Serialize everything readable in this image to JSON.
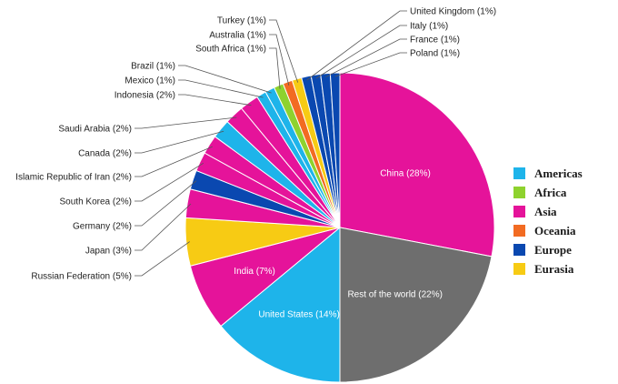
{
  "chart_data": {
    "type": "pie",
    "slices": [
      {
        "label": "China (28%)",
        "value": 28,
        "region": "Asia"
      },
      {
        "label": "Rest of the world (22%)",
        "value": 22,
        "region": "Other"
      },
      {
        "label": "United States (14%)",
        "value": 14,
        "region": "Americas"
      },
      {
        "label": "India (7%)",
        "value": 7,
        "region": "Asia"
      },
      {
        "label": "Russian Federation (5%)",
        "value": 5,
        "region": "Eurasia"
      },
      {
        "label": "Japan (3%)",
        "value": 3,
        "region": "Asia"
      },
      {
        "label": "Germany (2%)",
        "value": 2,
        "region": "Europe"
      },
      {
        "label": "South Korea (2%)",
        "value": 2,
        "region": "Asia"
      },
      {
        "label": "Islamic Republic of Iran (2%)",
        "value": 2,
        "region": "Asia"
      },
      {
        "label": "Canada (2%)",
        "value": 2,
        "region": "Americas"
      },
      {
        "label": "Saudi Arabia (2%)",
        "value": 2,
        "region": "Asia"
      },
      {
        "label": "Indonesia (2%)",
        "value": 2,
        "region": "Asia"
      },
      {
        "label": "Mexico (1%)",
        "value": 1,
        "region": "Americas"
      },
      {
        "label": "Brazil (1%)",
        "value": 1,
        "region": "Americas"
      },
      {
        "label": "South Africa (1%)",
        "value": 1,
        "region": "Africa"
      },
      {
        "label": "Australia (1%)",
        "value": 1,
        "region": "Oceania"
      },
      {
        "label": "Turkey (1%)",
        "value": 1,
        "region": "Eurasia"
      },
      {
        "label": "United Kingdom (1%)",
        "value": 1,
        "region": "Europe"
      },
      {
        "label": "Italy (1%)",
        "value": 1,
        "region": "Europe"
      },
      {
        "label": "France (1%)",
        "value": 1,
        "region": "Europe"
      },
      {
        "label": "Poland (1%)",
        "value": 1,
        "region": "Europe"
      }
    ],
    "legend": [
      {
        "name": "Americas",
        "color": "#1eb4ea"
      },
      {
        "name": "Africa",
        "color": "#8ed22e"
      },
      {
        "name": "Asia",
        "color": "#e5139a"
      },
      {
        "name": "Oceania",
        "color": "#f26b22"
      },
      {
        "name": "Europe",
        "color": "#0a48b0"
      },
      {
        "name": "Eurasia",
        "color": "#f7cb14"
      }
    ],
    "other_color": "#6e6e6e",
    "legend_position": "right"
  }
}
